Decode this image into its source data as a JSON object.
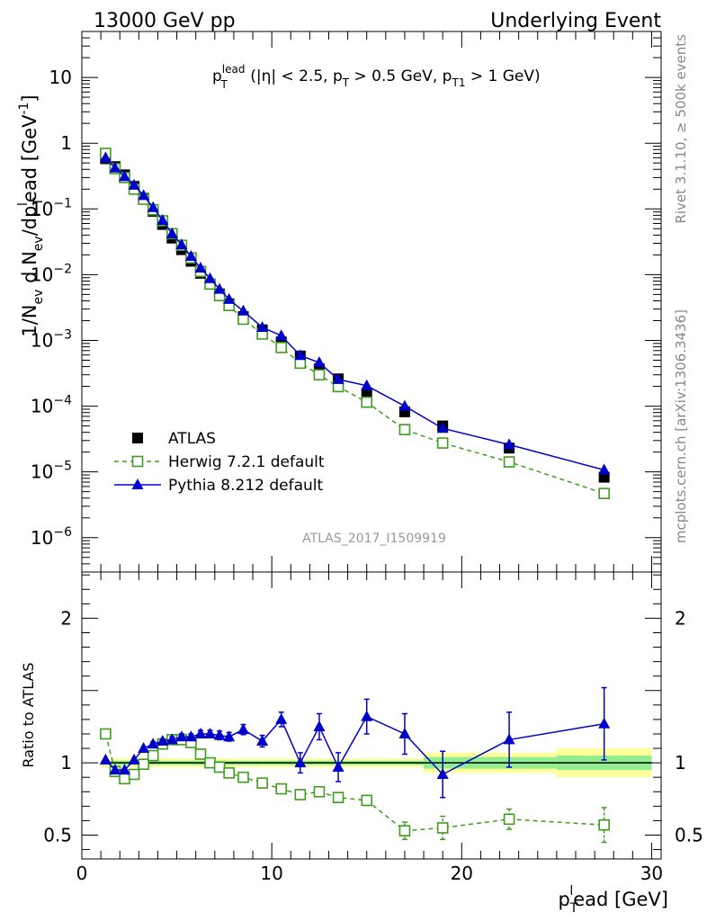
{
  "header": {
    "left": "13000 GeV pp",
    "right": "Underlying Event"
  },
  "side_labels": {
    "top": "Rivet 3.1.10, ≥ 500k events",
    "bottom": "mcplots.cern.ch [arXiv:1306.3436]"
  },
  "analysis_tag": "ATLAS_2017_I1509919",
  "colors": {
    "atlas": "#000000",
    "herwig": "#3f9c1d",
    "pythia": "#0000cc",
    "band_inner": "#90ee90",
    "band_outer": "#ffff99"
  },
  "chart_data": [
    {
      "type": "scatter",
      "panel": "main",
      "title_parts": {
        "p": "p",
        "sup": "lead",
        "sub": "T",
        "rest1": " (|η| < 2.5, p",
        "sub2": "T",
        "rest2": " > 0.5 GeV, p",
        "sub3": "T1",
        "rest3": " > 1 GeV)"
      },
      "ylabel": "1/N_ev d N_ev/dp_T^lead [GeV^-1]",
      "ylabel_parts": {
        "a": "1/N",
        "a_sub": "ev",
        "b": " d N",
        "b_sub": "ev",
        "c": "/dp",
        "c_sub": "T",
        "c_sup": "l",
        "d": "ead [GeV",
        "d_sup": "-1",
        "e": "]"
      },
      "yscale": "log",
      "ylim": [
        3e-07,
        50
      ],
      "xlim": [
        0,
        30.5
      ],
      "y_tick_labels": [
        {
          "value": 1e-06,
          "mant": "10",
          "exp": "−6"
        },
        {
          "value": 1e-05,
          "mant": "10",
          "exp": "−5"
        },
        {
          "value": 0.0001,
          "mant": "10",
          "exp": "−4"
        },
        {
          "value": 0.001,
          "mant": "10",
          "exp": "−3"
        },
        {
          "value": 0.01,
          "mant": "10",
          "exp": "−2"
        },
        {
          "value": 0.1,
          "mant": "10",
          "exp": "−1"
        },
        {
          "value": 1,
          "mant": "1",
          "exp": ""
        },
        {
          "value": 10,
          "mant": "10",
          "exp": ""
        }
      ],
      "legend": {
        "position": "bottom-left",
        "entries": [
          "ATLAS",
          "Herwig 7.2.1 default",
          "Pythia 8.212 default"
        ]
      },
      "series": [
        {
          "name": "ATLAS",
          "marker": "filled-square",
          "x": [
            1.25,
            1.75,
            2.25,
            2.75,
            3.25,
            3.75,
            4.25,
            4.75,
            5.25,
            5.75,
            6.25,
            6.75,
            7.25,
            7.75,
            8.5,
            9.5,
            10.5,
            11.5,
            12.5,
            13.5,
            15.0,
            17.0,
            19.0,
            22.5,
            27.5
          ],
          "y": [
            0.58,
            0.44,
            0.33,
            0.22,
            0.145,
            0.092,
            0.058,
            0.036,
            0.024,
            0.016,
            0.0105,
            0.0072,
            0.0051,
            0.0036,
            0.0023,
            0.00145,
            0.00095,
            0.00058,
            0.00037,
            0.00026,
            0.000155,
            8.2e-05,
            5e-05,
            2.3e-05,
            8.3e-06
          ]
        },
        {
          "name": "Herwig 7.2.1 default",
          "marker": "open-square",
          "linestyle": "dashed",
          "x": [
            1.25,
            1.75,
            2.25,
            2.75,
            3.25,
            3.75,
            4.25,
            4.75,
            5.25,
            5.75,
            6.25,
            6.75,
            7.25,
            7.75,
            8.5,
            9.5,
            10.5,
            11.5,
            12.5,
            13.5,
            15.0,
            17.0,
            19.0,
            22.5,
            27.5
          ],
          "y": [
            0.7,
            0.41,
            0.3,
            0.2,
            0.14,
            0.097,
            0.066,
            0.042,
            0.028,
            0.018,
            0.0112,
            0.0072,
            0.0048,
            0.0034,
            0.0021,
            0.00125,
            0.00078,
            0.00045,
            0.0003,
            0.000198,
            0.000115,
            4.4e-05,
            2.75e-05,
            1.42e-05,
            4.7e-06
          ]
        },
        {
          "name": "Pythia 8.212 default",
          "marker": "filled-triangle",
          "linestyle": "solid",
          "x": [
            1.25,
            1.75,
            2.25,
            2.75,
            3.25,
            3.75,
            4.25,
            4.75,
            5.25,
            5.75,
            6.25,
            6.75,
            7.25,
            7.75,
            8.5,
            9.5,
            10.5,
            11.5,
            12.5,
            13.5,
            15.0,
            17.0,
            19.0,
            22.5,
            27.5
          ],
          "y": [
            0.6,
            0.42,
            0.31,
            0.23,
            0.16,
            0.105,
            0.067,
            0.042,
            0.0285,
            0.019,
            0.0126,
            0.0087,
            0.006,
            0.0042,
            0.0028,
            0.00158,
            0.00118,
            0.00059,
            0.00046,
            0.000255,
            0.000205,
            0.0001,
            4.6e-05,
            2.6e-05,
            1.07e-05
          ]
        }
      ]
    },
    {
      "type": "scatter",
      "panel": "ratio",
      "ylabel": "Ratio to ATLAS",
      "xlabel": "p_T^lead [GeV]",
      "xlabel_parts": {
        "a": "p",
        "a_sub": "T",
        "a_sup": "l",
        "b": "ead [GeV]"
      },
      "ylim": [
        0.335,
        2.32
      ],
      "xlim": [
        0,
        30.5
      ],
      "x_tick_labels": [
        "0",
        "10",
        "20",
        "30"
      ],
      "y_tick_labels": [
        "0.5",
        "1",
        "2"
      ],
      "reference_line": 1,
      "uncertainty_bands": [
        {
          "xmin": 1.0,
          "xmax": 18.0,
          "inner": [
            0.985,
            1.015
          ],
          "outer": [
            0.97,
            1.03
          ]
        },
        {
          "xmin": 18.0,
          "xmax": 25.0,
          "inner": [
            0.96,
            1.04
          ],
          "outer": [
            0.93,
            1.07
          ]
        },
        {
          "xmin": 25.0,
          "xmax": 30.0,
          "inner": [
            0.95,
            1.05
          ],
          "outer": [
            0.9,
            1.1
          ]
        }
      ],
      "series": [
        {
          "name": "Herwig 7.2.1 default",
          "marker": "open-square",
          "linestyle": "dashed",
          "x": [
            1.25,
            1.75,
            2.25,
            2.75,
            3.25,
            3.75,
            4.25,
            4.75,
            5.25,
            5.75,
            6.25,
            6.75,
            7.25,
            7.75,
            8.5,
            9.5,
            10.5,
            11.5,
            12.5,
            13.5,
            15.0,
            17.0,
            19.0,
            22.5,
            27.5
          ],
          "y": [
            1.2,
            0.94,
            0.89,
            0.92,
            0.99,
            1.05,
            1.13,
            1.16,
            1.16,
            1.14,
            1.06,
            1.0,
            0.97,
            0.93,
            0.9,
            0.86,
            0.82,
            0.78,
            0.8,
            0.76,
            0.74,
            0.53,
            0.55,
            0.61,
            0.57
          ],
          "err": [
            0.01,
            0.01,
            0.01,
            0.01,
            0.01,
            0.01,
            0.01,
            0.01,
            0.01,
            0.01,
            0.01,
            0.01,
            0.01,
            0.01,
            0.01,
            0.01,
            0.015,
            0.02,
            0.025,
            0.03,
            0.035,
            0.06,
            0.08,
            0.07,
            0.12
          ]
        },
        {
          "name": "Pythia 8.212 default",
          "marker": "filled-triangle",
          "linestyle": "solid",
          "x": [
            1.25,
            1.75,
            2.25,
            2.75,
            3.25,
            3.75,
            4.25,
            4.75,
            5.25,
            5.75,
            6.25,
            6.75,
            7.25,
            7.75,
            8.5,
            9.5,
            10.5,
            11.5,
            12.5,
            13.5,
            15.0,
            17.0,
            19.0,
            22.5,
            27.5
          ],
          "y": [
            1.02,
            0.95,
            0.95,
            1.02,
            1.1,
            1.13,
            1.15,
            1.16,
            1.18,
            1.18,
            1.2,
            1.2,
            1.19,
            1.18,
            1.23,
            1.15,
            1.3,
            1.0,
            1.25,
            0.97,
            1.32,
            1.2,
            0.92,
            1.16,
            1.27
          ],
          "err": [
            0.01,
            0.01,
            0.01,
            0.01,
            0.01,
            0.015,
            0.015,
            0.02,
            0.02,
            0.02,
            0.025,
            0.025,
            0.03,
            0.03,
            0.035,
            0.04,
            0.05,
            0.07,
            0.09,
            0.1,
            0.12,
            0.14,
            0.16,
            0.19,
            0.25
          ]
        }
      ]
    }
  ]
}
